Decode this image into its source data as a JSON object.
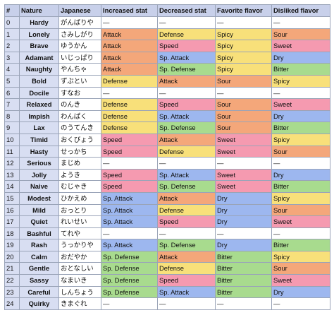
{
  "headers": [
    "#",
    "Nature",
    "Japanese",
    "Increased stat",
    "Decreased stat",
    "Favorite flavor",
    "Disliked flavor"
  ],
  "colors": {
    "Attack": "#f4a77a",
    "Defense": "#f8e07a",
    "Speed": "#f59ab0",
    "Sp. Attack": "#9db7ef",
    "Sp. Defense": "#a8db8e",
    "Spicy": "#f8e07a",
    "Sour": "#f4a77a",
    "Sweet": "#f59ab0",
    "Dry": "#9db7ef",
    "Bitter": "#a8db8e",
    "—": "#ffffff"
  },
  "rows": [
    [
      "0",
      "Hardy",
      "がんばりや",
      "—",
      "—",
      "—",
      "—"
    ],
    [
      "1",
      "Lonely",
      "さみしがり",
      "Attack",
      "Defense",
      "Spicy",
      "Sour"
    ],
    [
      "2",
      "Brave",
      "ゆうかん",
      "Attack",
      "Speed",
      "Spicy",
      "Sweet"
    ],
    [
      "3",
      "Adamant",
      "いじっぱり",
      "Attack",
      "Sp. Attack",
      "Spicy",
      "Dry"
    ],
    [
      "4",
      "Naughty",
      "やんちゃ",
      "Attack",
      "Sp. Defense",
      "Spicy",
      "Bitter"
    ],
    [
      "5",
      "Bold",
      "ずぶとい",
      "Defense",
      "Attack",
      "Sour",
      "Spicy"
    ],
    [
      "6",
      "Docile",
      "すなお",
      "—",
      "—",
      "—",
      "—"
    ],
    [
      "7",
      "Relaxed",
      "のんき",
      "Defense",
      "Speed",
      "Sour",
      "Sweet"
    ],
    [
      "8",
      "Impish",
      "わんぱく",
      "Defense",
      "Sp. Attack",
      "Sour",
      "Dry"
    ],
    [
      "9",
      "Lax",
      "のうてんき",
      "Defense",
      "Sp. Defense",
      "Sour",
      "Bitter"
    ],
    [
      "10",
      "Timid",
      "おくびょう",
      "Speed",
      "Attack",
      "Sweet",
      "Spicy"
    ],
    [
      "11",
      "Hasty",
      "せっかち",
      "Speed",
      "Defense",
      "Sweet",
      "Sour"
    ],
    [
      "12",
      "Serious",
      "まじめ",
      "—",
      "—",
      "—",
      "—"
    ],
    [
      "13",
      "Jolly",
      "ようき",
      "Speed",
      "Sp. Attack",
      "Sweet",
      "Dry"
    ],
    [
      "14",
      "Naive",
      "むじゃき",
      "Speed",
      "Sp. Defense",
      "Sweet",
      "Bitter"
    ],
    [
      "15",
      "Modest",
      "ひかえめ",
      "Sp. Attack",
      "Attack",
      "Dry",
      "Spicy"
    ],
    [
      "16",
      "Mild",
      "おっとり",
      "Sp. Attack",
      "Defense",
      "Dry",
      "Sour"
    ],
    [
      "17",
      "Quiet",
      "れいせい",
      "Sp. Attack",
      "Speed",
      "Dry",
      "Sweet"
    ],
    [
      "18",
      "Bashful",
      "てれや",
      "—",
      "—",
      "—",
      "—"
    ],
    [
      "19",
      "Rash",
      "うっかりや",
      "Sp. Attack",
      "Sp. Defense",
      "Dry",
      "Bitter"
    ],
    [
      "20",
      "Calm",
      "おだやか",
      "Sp. Defense",
      "Attack",
      "Bitter",
      "Spicy"
    ],
    [
      "21",
      "Gentle",
      "おとなしい",
      "Sp. Defense",
      "Defense",
      "Bitter",
      "Sour"
    ],
    [
      "22",
      "Sassy",
      "なまいき",
      "Sp. Defense",
      "Speed",
      "Bitter",
      "Sweet"
    ],
    [
      "23",
      "Careful",
      "しんちょう",
      "Sp. Defense",
      "Sp. Attack",
      "Bitter",
      "Dry"
    ],
    [
      "24",
      "Quirky",
      "きまぐれ",
      "—",
      "—",
      "—",
      "—"
    ]
  ]
}
